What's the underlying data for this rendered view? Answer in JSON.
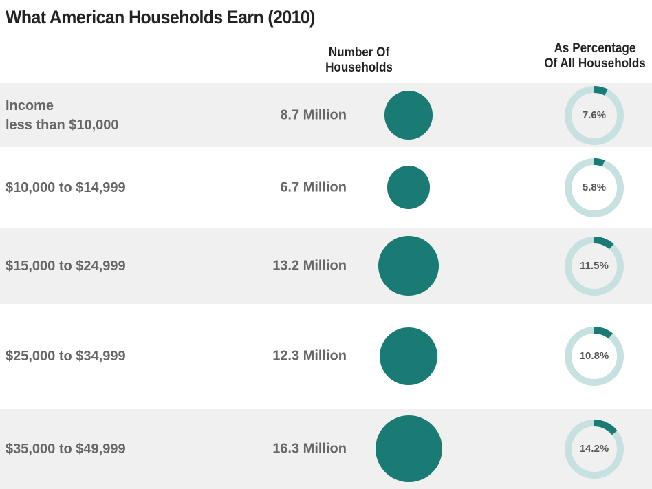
{
  "title": "What American Households Earn (2010)",
  "columns": {
    "count": [
      "Number Of",
      "Households"
    ],
    "percent": [
      "As Percentage",
      "Of All Households"
    ]
  },
  "colors": {
    "bubble": "#1a7a74",
    "donut_fill": "#1a7a74",
    "donut_track": "#c6e1df",
    "row_shade": "#f0f0f0"
  },
  "chart_data": {
    "type": "table",
    "title": "What American Households Earn (2010)",
    "categories": [
      "Income less than $10,000",
      "$10,000 to $14,999",
      "$15,000 to $24,999",
      "$25,000 to $34,999",
      "$35,000 to $49,999"
    ],
    "series": [
      {
        "name": "Number Of Households",
        "unit": "Million",
        "values": [
          8.7,
          6.7,
          13.2,
          12.3,
          16.3
        ]
      },
      {
        "name": "As Percentage Of All Households",
        "unit": "%",
        "values": [
          7.6,
          5.8,
          11.5,
          10.8,
          14.2
        ]
      }
    ]
  },
  "rows": [
    {
      "label_lines": [
        "Income",
        "less than $10,000"
      ],
      "count_label": "8.7 Million",
      "count_value": 8.7,
      "pct_label": "7.6%",
      "pct_value": 7.6
    },
    {
      "label_lines": [
        "$10,000 to $14,999"
      ],
      "count_label": "6.7 Million",
      "count_value": 6.7,
      "pct_label": "5.8%",
      "pct_value": 5.8
    },
    {
      "label_lines": [
        "$15,000 to $24,999"
      ],
      "count_label": "13.2 Million",
      "count_value": 13.2,
      "pct_label": "11.5%",
      "pct_value": 11.5
    },
    {
      "label_lines": [
        "$25,000 to $34,999"
      ],
      "count_label": "12.3 Million",
      "count_value": 12.3,
      "pct_label": "10.8%",
      "pct_value": 10.8
    },
    {
      "label_lines": [
        "$35,000 to $49,999"
      ],
      "count_label": "16.3 Million",
      "count_value": 16.3,
      "pct_label": "14.2%",
      "pct_value": 14.2
    }
  ]
}
